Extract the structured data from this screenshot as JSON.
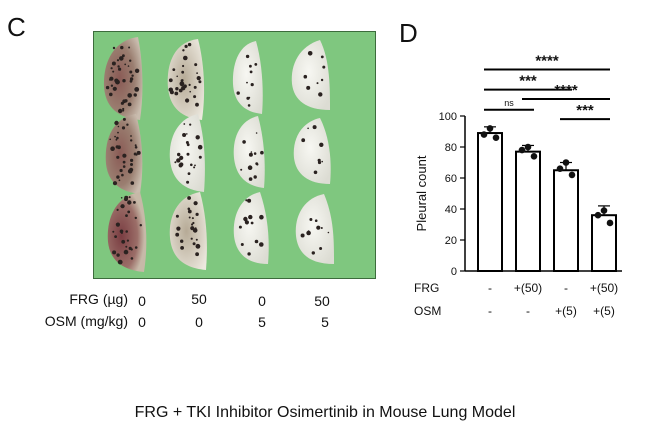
{
  "panels": {
    "c_label": "C",
    "d_label": "D"
  },
  "photo_table": {
    "rows": [
      {
        "label": "FRG (µg)",
        "values": [
          "0",
          "50",
          "0",
          "50"
        ]
      },
      {
        "label": "OSM (mg/kg)",
        "values": [
          "0",
          "0",
          "5",
          "5"
        ]
      }
    ]
  },
  "caption": "FRG + TKI Inhibitor Osimertinib in Mouse Lung Model",
  "colors": {
    "photo_background": "#7fc77f",
    "bar_fill": "#ffffff",
    "bar_stroke": "#000000"
  },
  "chart_data": {
    "type": "bar",
    "title": "",
    "xlabel": "",
    "ylabel": "Pleural count",
    "ylim": [
      0,
      100
    ],
    "yticks": [
      0,
      20,
      40,
      60,
      80,
      100
    ],
    "categories": [
      "1",
      "2",
      "3",
      "4"
    ],
    "values": [
      89,
      77,
      65,
      36
    ],
    "errors": [
      4,
      4,
      5,
      6
    ],
    "points": [
      [
        92,
        88,
        86
      ],
      [
        80,
        78,
        74
      ],
      [
        70,
        66,
        62
      ],
      [
        39,
        36,
        31
      ]
    ],
    "condition_rows": [
      {
        "label": "FRG",
        "values": [
          "-",
          "+(50)",
          "-",
          "+(50)"
        ]
      },
      {
        "label": "OSM",
        "values": [
          "-",
          "-",
          "+(5)",
          "+(5)"
        ]
      }
    ],
    "significance": [
      {
        "from": 1,
        "to": 2,
        "label": "ns"
      },
      {
        "from": 1,
        "to": 3,
        "label": "***"
      },
      {
        "from": 1,
        "to": 4,
        "label": "****"
      },
      {
        "from": 2,
        "to": 4,
        "label": "****"
      },
      {
        "from": 3,
        "to": 4,
        "label": "***"
      }
    ]
  }
}
